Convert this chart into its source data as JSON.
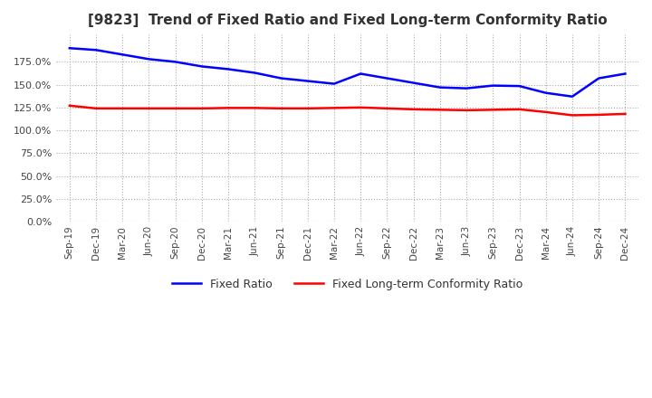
{
  "title": "[9823]  Trend of Fixed Ratio and Fixed Long-term Conformity Ratio",
  "x_labels": [
    "Sep-19",
    "Dec-19",
    "Mar-20",
    "Jun-20",
    "Sep-20",
    "Dec-20",
    "Mar-21",
    "Jun-21",
    "Sep-21",
    "Dec-21",
    "Mar-22",
    "Jun-22",
    "Sep-22",
    "Dec-22",
    "Mar-23",
    "Jun-23",
    "Sep-23",
    "Dec-23",
    "Mar-24",
    "Jun-24",
    "Sep-24",
    "Dec-24"
  ],
  "fixed_ratio": [
    190.0,
    188.0,
    183.0,
    178.0,
    175.0,
    170.0,
    167.0,
    163.0,
    157.0,
    154.0,
    151.0,
    162.0,
    157.0,
    152.0,
    147.0,
    146.0,
    149.0,
    148.5,
    141.0,
    137.0,
    157.0,
    162.0
  ],
  "fixed_lt_ratio": [
    127.0,
    124.0,
    124.0,
    124.0,
    124.0,
    124.0,
    124.5,
    124.5,
    124.0,
    124.0,
    124.5,
    125.0,
    124.0,
    123.0,
    122.5,
    122.0,
    122.5,
    123.0,
    120.0,
    116.5,
    117.0,
    118.0
  ],
  "fixed_ratio_color": "#0000FF",
  "fixed_lt_ratio_color": "#FF0000",
  "background_color": "#FFFFFF",
  "grid_color": "#AAAAAA",
  "ylim": [
    0,
    205
  ],
  "yticks": [
    0,
    25,
    50,
    75,
    100,
    125,
    150,
    175
  ],
  "legend_fixed_ratio": "Fixed Ratio",
  "legend_fixed_lt_ratio": "Fixed Long-term Conformity Ratio"
}
